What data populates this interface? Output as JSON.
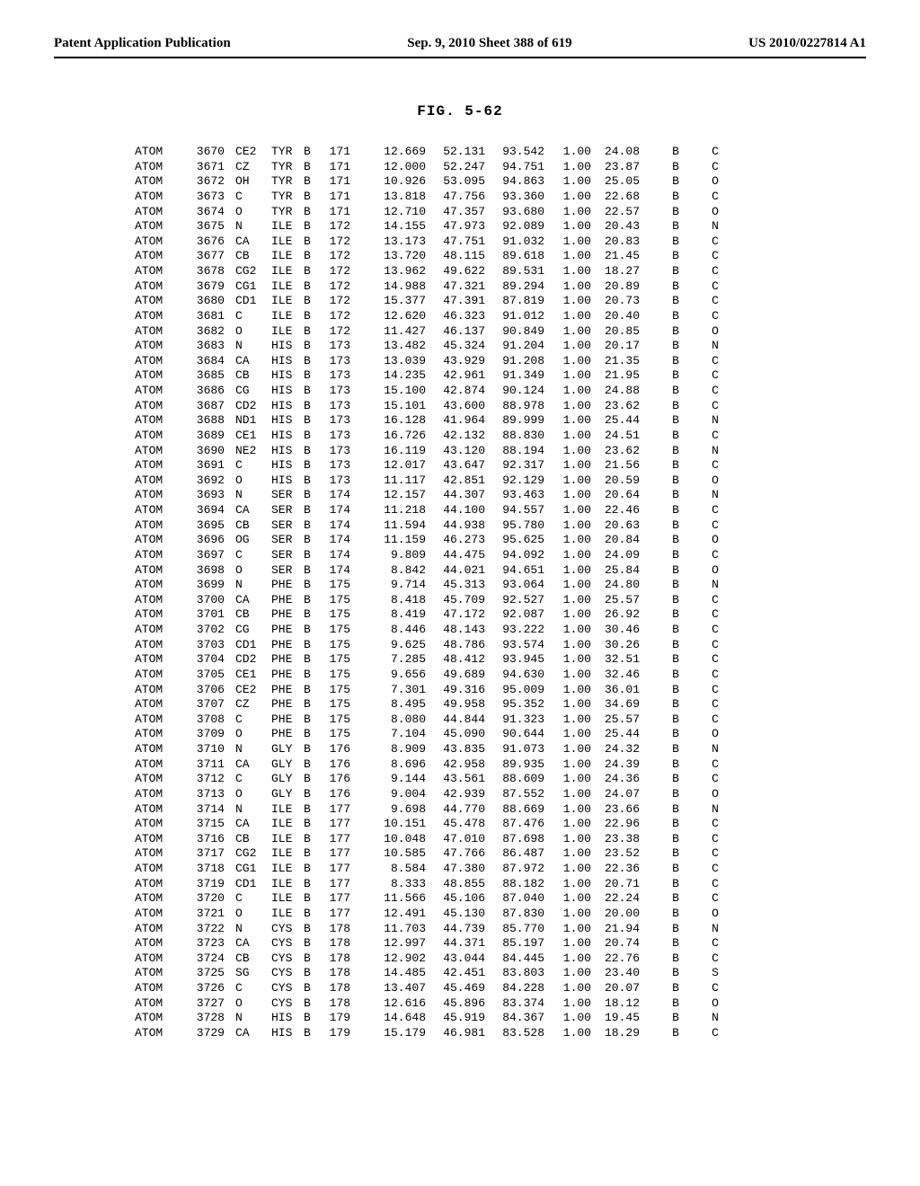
{
  "header": {
    "left": "Patent Application Publication",
    "center": "Sep. 9, 2010   Sheet 388 of 619",
    "right": "US 2010/0227814 A1"
  },
  "figure_title": "FIG.  5-62",
  "table": {
    "font_family": "Courier New",
    "font_size_pt": 10,
    "text_color": "#000000",
    "background_color": "#ffffff",
    "columns": [
      "record",
      "serial",
      "atom",
      "residue",
      "chain",
      "resSeq",
      "x",
      "y",
      "z",
      "occ",
      "bfactor",
      "seg",
      "element"
    ],
    "rows": [
      [
        "ATOM",
        "3670",
        "CE2",
        "TYR",
        "B",
        "171",
        "12.669",
        "52.131",
        "93.542",
        "1.00",
        "24.08",
        "B",
        "C"
      ],
      [
        "ATOM",
        "3671",
        "CZ",
        "TYR",
        "B",
        "171",
        "12.000",
        "52.247",
        "94.751",
        "1.00",
        "23.87",
        "B",
        "C"
      ],
      [
        "ATOM",
        "3672",
        "OH",
        "TYR",
        "B",
        "171",
        "10.926",
        "53.095",
        "94.863",
        "1.00",
        "25.05",
        "B",
        "O"
      ],
      [
        "ATOM",
        "3673",
        "C",
        "TYR",
        "B",
        "171",
        "13.818",
        "47.756",
        "93.360",
        "1.00",
        "22.68",
        "B",
        "C"
      ],
      [
        "ATOM",
        "3674",
        "O",
        "TYR",
        "B",
        "171",
        "12.710",
        "47.357",
        "93.680",
        "1.00",
        "22.57",
        "B",
        "O"
      ],
      [
        "ATOM",
        "3675",
        "N",
        "ILE",
        "B",
        "172",
        "14.155",
        "47.973",
        "92.089",
        "1.00",
        "20.43",
        "B",
        "N"
      ],
      [
        "ATOM",
        "3676",
        "CA",
        "ILE",
        "B",
        "172",
        "13.173",
        "47.751",
        "91.032",
        "1.00",
        "20.83",
        "B",
        "C"
      ],
      [
        "ATOM",
        "3677",
        "CB",
        "ILE",
        "B",
        "172",
        "13.720",
        "48.115",
        "89.618",
        "1.00",
        "21.45",
        "B",
        "C"
      ],
      [
        "ATOM",
        "3678",
        "CG2",
        "ILE",
        "B",
        "172",
        "13.962",
        "49.622",
        "89.531",
        "1.00",
        "18.27",
        "B",
        "C"
      ],
      [
        "ATOM",
        "3679",
        "CG1",
        "ILE",
        "B",
        "172",
        "14.988",
        "47.321",
        "89.294",
        "1.00",
        "20.89",
        "B",
        "C"
      ],
      [
        "ATOM",
        "3680",
        "CD1",
        "ILE",
        "B",
        "172",
        "15.377",
        "47.391",
        "87.819",
        "1.00",
        "20.73",
        "B",
        "C"
      ],
      [
        "ATOM",
        "3681",
        "C",
        "ILE",
        "B",
        "172",
        "12.620",
        "46.323",
        "91.012",
        "1.00",
        "20.40",
        "B",
        "C"
      ],
      [
        "ATOM",
        "3682",
        "O",
        "ILE",
        "B",
        "172",
        "11.427",
        "46.137",
        "90.849",
        "1.00",
        "20.85",
        "B",
        "O"
      ],
      [
        "ATOM",
        "3683",
        "N",
        "HIS",
        "B",
        "173",
        "13.482",
        "45.324",
        "91.204",
        "1.00",
        "20.17",
        "B",
        "N"
      ],
      [
        "ATOM",
        "3684",
        "CA",
        "HIS",
        "B",
        "173",
        "13.039",
        "43.929",
        "91.208",
        "1.00",
        "21.35",
        "B",
        "C"
      ],
      [
        "ATOM",
        "3685",
        "CB",
        "HIS",
        "B",
        "173",
        "14.235",
        "42.961",
        "91.349",
        "1.00",
        "21.95",
        "B",
        "C"
      ],
      [
        "ATOM",
        "3686",
        "CG",
        "HIS",
        "B",
        "173",
        "15.100",
        "42.874",
        "90.124",
        "1.00",
        "24.88",
        "B",
        "C"
      ],
      [
        "ATOM",
        "3687",
        "CD2",
        "HIS",
        "B",
        "173",
        "15.101",
        "43.600",
        "88.978",
        "1.00",
        "23.62",
        "B",
        "C"
      ],
      [
        "ATOM",
        "3688",
        "ND1",
        "HIS",
        "B",
        "173",
        "16.128",
        "41.964",
        "89.999",
        "1.00",
        "25.44",
        "B",
        "N"
      ],
      [
        "ATOM",
        "3689",
        "CE1",
        "HIS",
        "B",
        "173",
        "16.726",
        "42.132",
        "88.830",
        "1.00",
        "24.51",
        "B",
        "C"
      ],
      [
        "ATOM",
        "3690",
        "NE2",
        "HIS",
        "B",
        "173",
        "16.119",
        "43.120",
        "88.194",
        "1.00",
        "23.62",
        "B",
        "N"
      ],
      [
        "ATOM",
        "3691",
        "C",
        "HIS",
        "B",
        "173",
        "12.017",
        "43.647",
        "92.317",
        "1.00",
        "21.56",
        "B",
        "C"
      ],
      [
        "ATOM",
        "3692",
        "O",
        "HIS",
        "B",
        "173",
        "11.117",
        "42.851",
        "92.129",
        "1.00",
        "20.59",
        "B",
        "O"
      ],
      [
        "ATOM",
        "3693",
        "N",
        "SER",
        "B",
        "174",
        "12.157",
        "44.307",
        "93.463",
        "1.00",
        "20.64",
        "B",
        "N"
      ],
      [
        "ATOM",
        "3694",
        "CA",
        "SER",
        "B",
        "174",
        "11.218",
        "44.100",
        "94.557",
        "1.00",
        "22.46",
        "B",
        "C"
      ],
      [
        "ATOM",
        "3695",
        "CB",
        "SER",
        "B",
        "174",
        "11.594",
        "44.938",
        "95.780",
        "1.00",
        "20.63",
        "B",
        "C"
      ],
      [
        "ATOM",
        "3696",
        "OG",
        "SER",
        "B",
        "174",
        "11.159",
        "46.273",
        "95.625",
        "1.00",
        "20.84",
        "B",
        "O"
      ],
      [
        "ATOM",
        "3697",
        "C",
        "SER",
        "B",
        "174",
        "9.809",
        "44.475",
        "94.092",
        "1.00",
        "24.09",
        "B",
        "C"
      ],
      [
        "ATOM",
        "3698",
        "O",
        "SER",
        "B",
        "174",
        "8.842",
        "44.021",
        "94.651",
        "1.00",
        "25.84",
        "B",
        "O"
      ],
      [
        "ATOM",
        "3699",
        "N",
        "PHE",
        "B",
        "175",
        "9.714",
        "45.313",
        "93.064",
        "1.00",
        "24.80",
        "B",
        "N"
      ],
      [
        "ATOM",
        "3700",
        "CA",
        "PHE",
        "B",
        "175",
        "8.418",
        "45.709",
        "92.527",
        "1.00",
        "25.57",
        "B",
        "C"
      ],
      [
        "ATOM",
        "3701",
        "CB",
        "PHE",
        "B",
        "175",
        "8.419",
        "47.172",
        "92.087",
        "1.00",
        "26.92",
        "B",
        "C"
      ],
      [
        "ATOM",
        "3702",
        "CG",
        "PHE",
        "B",
        "175",
        "8.446",
        "48.143",
        "93.222",
        "1.00",
        "30.46",
        "B",
        "C"
      ],
      [
        "ATOM",
        "3703",
        "CD1",
        "PHE",
        "B",
        "175",
        "9.625",
        "48.786",
        "93.574",
        "1.00",
        "30.26",
        "B",
        "C"
      ],
      [
        "ATOM",
        "3704",
        "CD2",
        "PHE",
        "B",
        "175",
        "7.285",
        "48.412",
        "93.945",
        "1.00",
        "32.51",
        "B",
        "C"
      ],
      [
        "ATOM",
        "3705",
        "CE1",
        "PHE",
        "B",
        "175",
        "9.656",
        "49.689",
        "94.630",
        "1.00",
        "32.46",
        "B",
        "C"
      ],
      [
        "ATOM",
        "3706",
        "CE2",
        "PHE",
        "B",
        "175",
        "7.301",
        "49.316",
        "95.009",
        "1.00",
        "36.01",
        "B",
        "C"
      ],
      [
        "ATOM",
        "3707",
        "CZ",
        "PHE",
        "B",
        "175",
        "8.495",
        "49.958",
        "95.352",
        "1.00",
        "34.69",
        "B",
        "C"
      ],
      [
        "ATOM",
        "3708",
        "C",
        "PHE",
        "B",
        "175",
        "8.080",
        "44.844",
        "91.323",
        "1.00",
        "25.57",
        "B",
        "C"
      ],
      [
        "ATOM",
        "3709",
        "O",
        "PHE",
        "B",
        "175",
        "7.104",
        "45.090",
        "90.644",
        "1.00",
        "25.44",
        "B",
        "O"
      ],
      [
        "ATOM",
        "3710",
        "N",
        "GLY",
        "B",
        "176",
        "8.909",
        "43.835",
        "91.073",
        "1.00",
        "24.32",
        "B",
        "N"
      ],
      [
        "ATOM",
        "3711",
        "CA",
        "GLY",
        "B",
        "176",
        "8.696",
        "42.958",
        "89.935",
        "1.00",
        "24.39",
        "B",
        "C"
      ],
      [
        "ATOM",
        "3712",
        "C",
        "GLY",
        "B",
        "176",
        "9.144",
        "43.561",
        "88.609",
        "1.00",
        "24.36",
        "B",
        "C"
      ],
      [
        "ATOM",
        "3713",
        "O",
        "GLY",
        "B",
        "176",
        "9.004",
        "42.939",
        "87.552",
        "1.00",
        "24.07",
        "B",
        "O"
      ],
      [
        "ATOM",
        "3714",
        "N",
        "ILE",
        "B",
        "177",
        "9.698",
        "44.770",
        "88.669",
        "1.00",
        "23.66",
        "B",
        "N"
      ],
      [
        "ATOM",
        "3715",
        "CA",
        "ILE",
        "B",
        "177",
        "10.151",
        "45.478",
        "87.476",
        "1.00",
        "22.96",
        "B",
        "C"
      ],
      [
        "ATOM",
        "3716",
        "CB",
        "ILE",
        "B",
        "177",
        "10.048",
        "47.010",
        "87.698",
        "1.00",
        "23.38",
        "B",
        "C"
      ],
      [
        "ATOM",
        "3717",
        "CG2",
        "ILE",
        "B",
        "177",
        "10.585",
        "47.766",
        "86.487",
        "1.00",
        "23.52",
        "B",
        "C"
      ],
      [
        "ATOM",
        "3718",
        "CG1",
        "ILE",
        "B",
        "177",
        "8.584",
        "47.380",
        "87.972",
        "1.00",
        "22.36",
        "B",
        "C"
      ],
      [
        "ATOM",
        "3719",
        "CD1",
        "ILE",
        "B",
        "177",
        "8.333",
        "48.855",
        "88.182",
        "1.00",
        "20.71",
        "B",
        "C"
      ],
      [
        "ATOM",
        "3720",
        "C",
        "ILE",
        "B",
        "177",
        "11.566",
        "45.106",
        "87.040",
        "1.00",
        "22.24",
        "B",
        "C"
      ],
      [
        "ATOM",
        "3721",
        "O",
        "ILE",
        "B",
        "177",
        "12.491",
        "45.130",
        "87.830",
        "1.00",
        "20.00",
        "B",
        "O"
      ],
      [
        "ATOM",
        "3722",
        "N",
        "CYS",
        "B",
        "178",
        "11.703",
        "44.739",
        "85.770",
        "1.00",
        "21.94",
        "B",
        "N"
      ],
      [
        "ATOM",
        "3723",
        "CA",
        "CYS",
        "B",
        "178",
        "12.997",
        "44.371",
        "85.197",
        "1.00",
        "20.74",
        "B",
        "C"
      ],
      [
        "ATOM",
        "3724",
        "CB",
        "CYS",
        "B",
        "178",
        "12.902",
        "43.044",
        "84.445",
        "1.00",
        "22.76",
        "B",
        "C"
      ],
      [
        "ATOM",
        "3725",
        "SG",
        "CYS",
        "B",
        "178",
        "14.485",
        "42.451",
        "83.803",
        "1.00",
        "23.40",
        "B",
        "S"
      ],
      [
        "ATOM",
        "3726",
        "C",
        "CYS",
        "B",
        "178",
        "13.407",
        "45.469",
        "84.228",
        "1.00",
        "20.07",
        "B",
        "C"
      ],
      [
        "ATOM",
        "3727",
        "O",
        "CYS",
        "B",
        "178",
        "12.616",
        "45.896",
        "83.374",
        "1.00",
        "18.12",
        "B",
        "O"
      ],
      [
        "ATOM",
        "3728",
        "N",
        "HIS",
        "B",
        "179",
        "14.648",
        "45.919",
        "84.367",
        "1.00",
        "19.45",
        "B",
        "N"
      ],
      [
        "ATOM",
        "3729",
        "CA",
        "HIS",
        "B",
        "179",
        "15.179",
        "46.981",
        "83.528",
        "1.00",
        "18.29",
        "B",
        "C"
      ]
    ]
  }
}
